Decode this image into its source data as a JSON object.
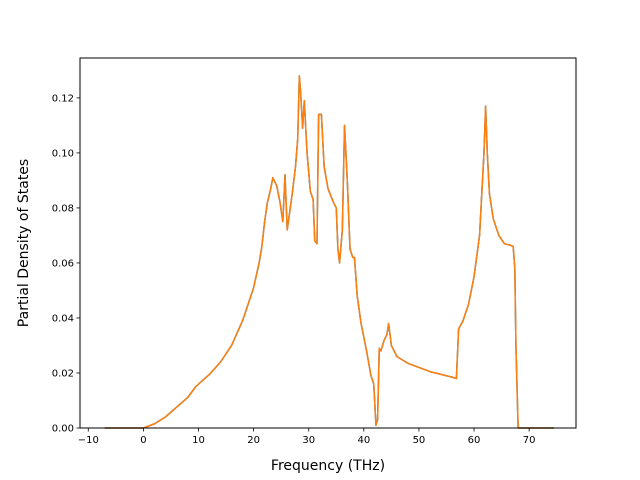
{
  "chart_data": {
    "type": "line",
    "title": "",
    "xlabel": "Frequency (THz)",
    "ylabel": "Partial Density of States",
    "xlim": [
      -11.5,
      78.5
    ],
    "ylim": [
      0,
      0.1345
    ],
    "xticks": [
      -10,
      0,
      10,
      20,
      30,
      40,
      50,
      60,
      70
    ],
    "xtick_labels": [
      "−10",
      "0",
      "10",
      "20",
      "30",
      "40",
      "50",
      "60",
      "70"
    ],
    "yticks": [
      0.0,
      0.02,
      0.04,
      0.06,
      0.08,
      0.1,
      0.12
    ],
    "ytick_labels": [
      "0.00",
      "0.02",
      "0.04",
      "0.06",
      "0.08",
      "0.10",
      "0.12"
    ],
    "grid": false,
    "legend": "none",
    "series": [
      {
        "color": "#ff7f0e",
        "underlay_color": "#1f77b4",
        "points": [
          [
            -7,
            0.0
          ],
          [
            0,
            0.0
          ],
          [
            2,
            0.0015
          ],
          [
            4,
            0.004
          ],
          [
            6,
            0.0075
          ],
          [
            8,
            0.011
          ],
          [
            9.5,
            0.015
          ],
          [
            10.3,
            0.0165
          ],
          [
            12,
            0.0195
          ],
          [
            14,
            0.024
          ],
          [
            16,
            0.03
          ],
          [
            18,
            0.039
          ],
          [
            20,
            0.051
          ],
          [
            21,
            0.06
          ],
          [
            21.5,
            0.066
          ],
          [
            22,
            0.075
          ],
          [
            22.5,
            0.082
          ],
          [
            23,
            0.086
          ],
          [
            23.5,
            0.091
          ],
          [
            24.2,
            0.088
          ],
          [
            24.8,
            0.082
          ],
          [
            25.3,
            0.075
          ],
          [
            25.7,
            0.092
          ],
          [
            26.1,
            0.072
          ],
          [
            27,
            0.085
          ],
          [
            27.6,
            0.095
          ],
          [
            28,
            0.105
          ],
          [
            28.3,
            0.128
          ],
          [
            28.5,
            0.123
          ],
          [
            28.9,
            0.109
          ],
          [
            29.2,
            0.119
          ],
          [
            29.7,
            0.1
          ],
          [
            30.3,
            0.086
          ],
          [
            30.8,
            0.083
          ],
          [
            31.1,
            0.068
          ],
          [
            31.5,
            0.067
          ],
          [
            31.8,
            0.114
          ],
          [
            32.3,
            0.114
          ],
          [
            32.8,
            0.095
          ],
          [
            33.5,
            0.087
          ],
          [
            34.5,
            0.082
          ],
          [
            35,
            0.08
          ],
          [
            35.3,
            0.065
          ],
          [
            35.6,
            0.06
          ],
          [
            36.1,
            0.072
          ],
          [
            36.5,
            0.11
          ],
          [
            37,
            0.09
          ],
          [
            37.5,
            0.065
          ],
          [
            38,
            0.062
          ],
          [
            38.3,
            0.062
          ],
          [
            38.8,
            0.048
          ],
          [
            39.5,
            0.038
          ],
          [
            40.5,
            0.028
          ],
          [
            41.3,
            0.019
          ],
          [
            41.8,
            0.016
          ],
          [
            42.2,
            0.001
          ],
          [
            42.5,
            0.003
          ],
          [
            42.8,
            0.029
          ],
          [
            43.1,
            0.028
          ],
          [
            43.7,
            0.032
          ],
          [
            44.2,
            0.034
          ],
          [
            44.5,
            0.038
          ],
          [
            45,
            0.03
          ],
          [
            46,
            0.026
          ],
          [
            48,
            0.0235
          ],
          [
            50,
            0.022
          ],
          [
            52,
            0.0205
          ],
          [
            54,
            0.0195
          ],
          [
            56,
            0.0185
          ],
          [
            56.8,
            0.018
          ],
          [
            57.2,
            0.036
          ],
          [
            58,
            0.039
          ],
          [
            59,
            0.045
          ],
          [
            60,
            0.055
          ],
          [
            61,
            0.07
          ],
          [
            61.8,
            0.1
          ],
          [
            62.1,
            0.117
          ],
          [
            62.4,
            0.1
          ],
          [
            62.8,
            0.085
          ],
          [
            63.5,
            0.076
          ],
          [
            64.5,
            0.07
          ],
          [
            65.5,
            0.067
          ],
          [
            66.5,
            0.0665
          ],
          [
            67.1,
            0.066
          ],
          [
            67.4,
            0.058
          ],
          [
            67.6,
            0.03
          ],
          [
            68,
            0.0
          ],
          [
            70,
            0.0
          ],
          [
            74.5,
            0.0
          ]
        ]
      }
    ]
  }
}
